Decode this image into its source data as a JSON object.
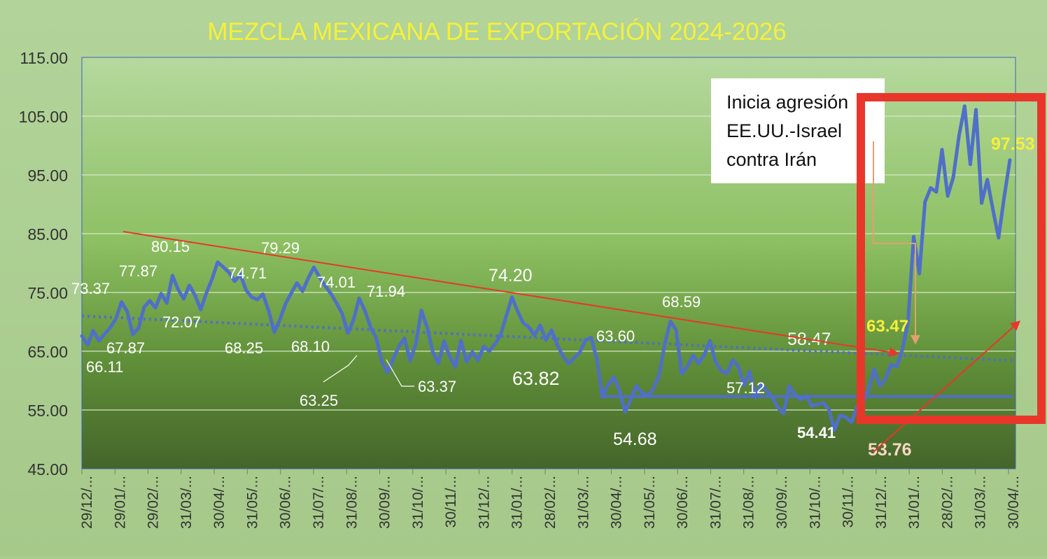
{
  "chart_data": {
    "type": "line",
    "title": "MEZCLA MEXICANA DE EXPORTACIÓN 2024-2026",
    "xlabel": "",
    "ylabel": "",
    "ylim": [
      45,
      115
    ],
    "y_ticks": [
      "45.00",
      "55.00",
      "65.00",
      "75.00",
      "85.00",
      "95.00",
      "105.00",
      "115.00"
    ],
    "x_ticks": [
      "29/12/...",
      "29/01/...",
      "29/02/...",
      "31/03/...",
      "30/04/...",
      "31/05/...",
      "30/06/...",
      "31/07/...",
      "31/08/...",
      "30/09/...",
      "31/10/...",
      "30/11/...",
      "31/12/...",
      "31/01/...",
      "28/02/...",
      "31/03/...",
      "30/04/...",
      "31/05/...",
      "30/06/...",
      "31/07/...",
      "31/08/...",
      "30/09/...",
      "31/10/...",
      "30/11/...",
      "31/12/...",
      "31/01/...",
      "28/02/...",
      "31/03/...",
      "30/04/..."
    ],
    "grid": "horizontal",
    "legend": "none",
    "series": [
      {
        "values": [
          67.6,
          66.1,
          68.5,
          66.8,
          67.9,
          69.0,
          70.5,
          73.37,
          71.8,
          67.87,
          68.9,
          72.5,
          73.6,
          72.4,
          74.8,
          73.2,
          77.87,
          75.5,
          73.9,
          76.2,
          74.5,
          72.07,
          74.9,
          77.3,
          80.15,
          79.3,
          78.4,
          76.9,
          78.1,
          75.4,
          74.2,
          73.8,
          74.71,
          71.9,
          68.25,
          70.4,
          73.1,
          74.9,
          76.6,
          75.2,
          77.4,
          79.29,
          77.6,
          76.1,
          74.8,
          73.2,
          71.4,
          68.1,
          70.3,
          74.01,
          71.9,
          69.1,
          67.3,
          63.25,
          61.4,
          63.6,
          65.8,
          67.2,
          63.37,
          66.2,
          71.94,
          69.1,
          64.9,
          62.9,
          66.7,
          64.1,
          62.3,
          66.8,
          63.2,
          64.9,
          63.4,
          65.8,
          65.0,
          66.2,
          67.8,
          71.0,
          74.2,
          71.8,
          69.8,
          69.1,
          67.7,
          69.4,
          66.9,
          68.6,
          66.1,
          64.2,
          62.9,
          63.82,
          64.8,
          66.9,
          67.3,
          63.6,
          57.2,
          59.3,
          60.6,
          58.3,
          54.68,
          56.8,
          59.1,
          57.9,
          57.4,
          58.6,
          60.9,
          66.2,
          70.1,
          68.59,
          61.2,
          62.4,
          64.3,
          62.9,
          64.4,
          66.8,
          63.1,
          61.7,
          61.2,
          63.5,
          62.4,
          59.2,
          61.6,
          57.12,
          59.4,
          58.3,
          57.2,
          55.4,
          54.41,
          59.1,
          57.6,
          56.8,
          57.4,
          55.7,
          55.9,
          56.2,
          55.1,
          51.6,
          54.1,
          53.76,
          52.9,
          55.6,
          56.2,
          58.47,
          61.9,
          59.1,
          60.3,
          62.7,
          62.4,
          65.3,
          70.1,
          84.5,
          78.2,
          90.4,
          92.8,
          92.1,
          99.3,
          91.4,
          94.6,
          101.6,
          106.7,
          96.8,
          106.1,
          90.2,
          94.2,
          89.1,
          84.3,
          91.3,
          97.53
        ],
        "color": "#4f6fc8"
      }
    ],
    "data_labels": [
      {
        "text": "73.37",
        "color": "#ffffff"
      },
      {
        "text": "66.11",
        "color": "#ffffff"
      },
      {
        "text": "67.87",
        "color": "#ffffff"
      },
      {
        "text": "77.87",
        "color": "#ffffff"
      },
      {
        "text": "80.15",
        "color": "#ffffff"
      },
      {
        "text": "72.07",
        "color": "#ffffff"
      },
      {
        "text": "74.71",
        "color": "#ffffff"
      },
      {
        "text": "68.25",
        "color": "#ffffff"
      },
      {
        "text": "79.29",
        "color": "#ffffff"
      },
      {
        "text": "74.01",
        "color": "#ffffff"
      },
      {
        "text": "68.10",
        "color": "#ffffff"
      },
      {
        "text": "71.94",
        "color": "#ffffff"
      },
      {
        "text": "63.25",
        "color": "#ffffff"
      },
      {
        "text": "63.37",
        "color": "#ffffff"
      },
      {
        "text": "74.20",
        "color": "#ffffff"
      },
      {
        "text": "63.82",
        "color": "#ffffff"
      },
      {
        "text": "63.60",
        "color": "#ffffff"
      },
      {
        "text": "68.59",
        "color": "#ffffff"
      },
      {
        "text": "54.68",
        "color": "#ffffff"
      },
      {
        "text": "57.12",
        "color": "#ffffff"
      },
      {
        "text": "58.47",
        "color": "#ffffff"
      },
      {
        "text": "54.41",
        "color": "#ffffff"
      },
      {
        "text": "63.47",
        "color": "#f5f03a"
      },
      {
        "text": "53.76",
        "color": "#f9d7c4"
      },
      {
        "text": "97.53",
        "color": "#f5f03a"
      }
    ],
    "annotation": "Inicia agresión\nEE.UU.-Israel\ncontra Irán",
    "reference_lines": {
      "support_level": 57.3,
      "trend_start": 71.0,
      "trend_end": 63.4,
      "downtrend_start": 85.5,
      "downtrend_end": 64.8
    },
    "colors": {
      "title": "#f5f03a",
      "series": "#4f6fc8",
      "axis_text": "#333333",
      "highlight_box": "#e8372a",
      "arrows": "#e8372a",
      "callout_arrow": "#e0a070"
    }
  }
}
